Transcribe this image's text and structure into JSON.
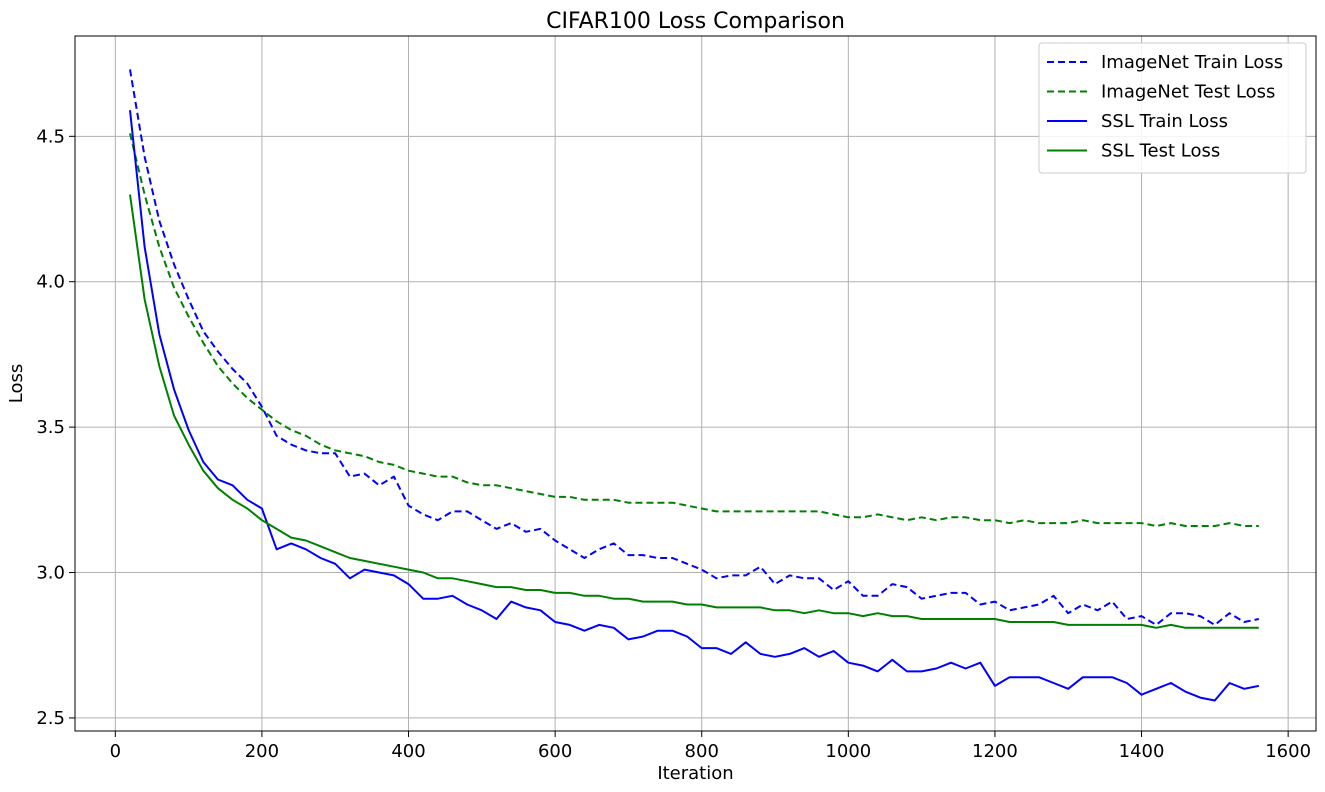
{
  "chart_data": {
    "type": "line",
    "title": "CIFAR100 Loss Comparison",
    "xlabel": "Iteration",
    "ylabel": "Loss",
    "xlim": [
      -55,
      1638
    ],
    "ylim": [
      2.455,
      4.845
    ],
    "xticks": [
      0,
      200,
      400,
      600,
      800,
      1000,
      1200,
      1400,
      1600
    ],
    "yticks": [
      2.5,
      3.0,
      3.5,
      4.0,
      4.5
    ],
    "ytick_labels": [
      "2.5",
      "3.0",
      "3.5",
      "4.0",
      "4.5"
    ],
    "grid": true,
    "legend_position": "top-right",
    "x": [
      20,
      40,
      60,
      80,
      100,
      120,
      140,
      160,
      180,
      200,
      220,
      240,
      260,
      280,
      300,
      320,
      340,
      360,
      380,
      400,
      420,
      440,
      460,
      480,
      500,
      520,
      540,
      560,
      580,
      600,
      620,
      640,
      660,
      680,
      700,
      720,
      740,
      760,
      780,
      800,
      820,
      840,
      860,
      880,
      900,
      920,
      940,
      960,
      980,
      1000,
      1020,
      1040,
      1060,
      1080,
      1100,
      1120,
      1140,
      1160,
      1180,
      1200,
      1220,
      1240,
      1260,
      1280,
      1300,
      1320,
      1340,
      1360,
      1380,
      1400,
      1420,
      1440,
      1460,
      1480,
      1500,
      1520,
      1540,
      1560
    ],
    "series": [
      {
        "name": "ImageNet Train Loss",
        "color": "#0000ff",
        "dashed": true,
        "values": [
          4.73,
          4.43,
          4.21,
          4.06,
          3.94,
          3.83,
          3.76,
          3.7,
          3.65,
          3.57,
          3.47,
          3.44,
          3.42,
          3.41,
          3.41,
          3.33,
          3.34,
          3.3,
          3.33,
          3.23,
          3.2,
          3.18,
          3.21,
          3.21,
          3.18,
          3.15,
          3.17,
          3.14,
          3.15,
          3.11,
          3.08,
          3.05,
          3.08,
          3.1,
          3.06,
          3.06,
          3.05,
          3.05,
          3.03,
          3.01,
          2.98,
          2.99,
          2.99,
          3.02,
          2.96,
          2.99,
          2.98,
          2.98,
          2.94,
          2.97,
          2.92,
          2.92,
          2.96,
          2.95,
          2.91,
          2.92,
          2.93,
          2.93,
          2.89,
          2.9,
          2.87,
          2.88,
          2.89,
          2.92,
          2.86,
          2.89,
          2.87,
          2.9,
          2.84,
          2.85,
          2.82,
          2.86,
          2.86,
          2.85,
          2.82,
          2.86,
          2.83,
          2.84
        ]
      },
      {
        "name": "ImageNet Test Loss",
        "color": "#008000",
        "dashed": true,
        "values": [
          4.51,
          4.3,
          4.12,
          3.98,
          3.88,
          3.79,
          3.71,
          3.65,
          3.6,
          3.56,
          3.52,
          3.49,
          3.47,
          3.44,
          3.42,
          3.41,
          3.4,
          3.38,
          3.37,
          3.35,
          3.34,
          3.33,
          3.33,
          3.31,
          3.3,
          3.3,
          3.29,
          3.28,
          3.27,
          3.26,
          3.26,
          3.25,
          3.25,
          3.25,
          3.24,
          3.24,
          3.24,
          3.24,
          3.23,
          3.22,
          3.21,
          3.21,
          3.21,
          3.21,
          3.21,
          3.21,
          3.21,
          3.21,
          3.2,
          3.19,
          3.19,
          3.2,
          3.19,
          3.18,
          3.19,
          3.18,
          3.19,
          3.19,
          3.18,
          3.18,
          3.17,
          3.18,
          3.17,
          3.17,
          3.17,
          3.18,
          3.17,
          3.17,
          3.17,
          3.17,
          3.16,
          3.17,
          3.16,
          3.16,
          3.16,
          3.17,
          3.16,
          3.16
        ]
      },
      {
        "name": "SSL Train Loss",
        "color": "#0000ff",
        "dashed": false,
        "values": [
          4.59,
          4.12,
          3.82,
          3.63,
          3.49,
          3.38,
          3.32,
          3.3,
          3.25,
          3.22,
          3.08,
          3.1,
          3.08,
          3.05,
          3.03,
          2.98,
          3.01,
          3.0,
          2.99,
          2.96,
          2.91,
          2.91,
          2.92,
          2.89,
          2.87,
          2.84,
          2.9,
          2.88,
          2.87,
          2.83,
          2.82,
          2.8,
          2.82,
          2.81,
          2.77,
          2.78,
          2.8,
          2.8,
          2.78,
          2.74,
          2.74,
          2.72,
          2.76,
          2.72,
          2.71,
          2.72,
          2.74,
          2.71,
          2.73,
          2.69,
          2.68,
          2.66,
          2.7,
          2.66,
          2.66,
          2.67,
          2.69,
          2.67,
          2.69,
          2.61,
          2.64,
          2.64,
          2.64,
          2.62,
          2.6,
          2.64,
          2.64,
          2.64,
          2.62,
          2.58,
          2.6,
          2.62,
          2.59,
          2.57,
          2.56,
          2.62,
          2.6,
          2.61
        ]
      },
      {
        "name": "SSL Test Loss",
        "color": "#008000",
        "dashed": false,
        "values": [
          4.3,
          3.94,
          3.71,
          3.54,
          3.44,
          3.35,
          3.29,
          3.25,
          3.22,
          3.18,
          3.15,
          3.12,
          3.11,
          3.09,
          3.07,
          3.05,
          3.04,
          3.03,
          3.02,
          3.01,
          3.0,
          2.98,
          2.98,
          2.97,
          2.96,
          2.95,
          2.95,
          2.94,
          2.94,
          2.93,
          2.93,
          2.92,
          2.92,
          2.91,
          2.91,
          2.9,
          2.9,
          2.9,
          2.89,
          2.89,
          2.88,
          2.88,
          2.88,
          2.88,
          2.87,
          2.87,
          2.86,
          2.87,
          2.86,
          2.86,
          2.85,
          2.86,
          2.85,
          2.85,
          2.84,
          2.84,
          2.84,
          2.84,
          2.84,
          2.84,
          2.83,
          2.83,
          2.83,
          2.83,
          2.82,
          2.82,
          2.82,
          2.82,
          2.82,
          2.82,
          2.81,
          2.82,
          2.81,
          2.81,
          2.81,
          2.81,
          2.81,
          2.81
        ]
      }
    ]
  }
}
